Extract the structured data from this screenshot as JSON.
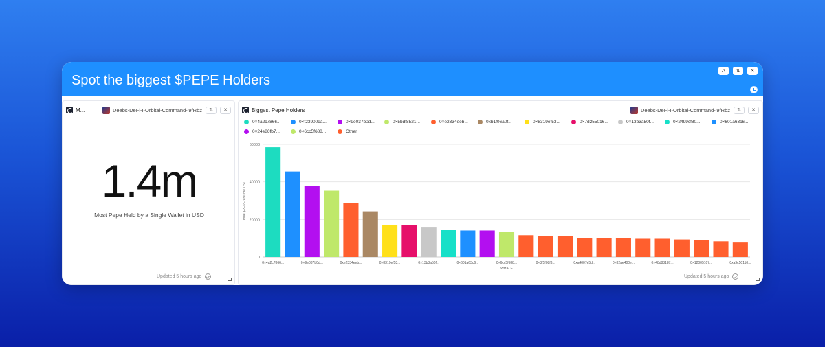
{
  "banner": {
    "title": "Spot the biggest $PEPE Holders",
    "btn_a": "A",
    "btn_refresh": "⇅",
    "btn_close": "✕"
  },
  "left_card": {
    "title": "M...",
    "source": "Deebs-DeFi-I-Orbital-Command-j9fRbz",
    "value": "1.4m",
    "caption": "Most Pepe Held by a Single Wallet in USD",
    "updated": "Updated 5 hours ago",
    "btn_refresh": "⇅",
    "btn_close": "✕"
  },
  "right_card": {
    "title": "Biggest Pepe Holders",
    "source": "Deebs-DeFi-I-Orbital-Command-j9fRbz",
    "updated": "Updated 5 hours ago",
    "btn_refresh": "⇅",
    "btn_close": "✕"
  },
  "legend": [
    {
      "label": "0×4a2c7866...",
      "color": "#1ddcc0"
    },
    {
      "label": "0×f239009a...",
      "color": "#1e90ff"
    },
    {
      "label": "0×9e037b0d...",
      "color": "#b30ff0"
    },
    {
      "label": "0×5bdf8521...",
      "color": "#bfe86a"
    },
    {
      "label": "0×e2334eeb...",
      "color": "#ff5f2e"
    },
    {
      "label": "0xb1f06a0f...",
      "color": "#aa8864"
    },
    {
      "label": "0×8319ef53...",
      "color": "#ffe01a"
    },
    {
      "label": "0×7d255016...",
      "color": "#e60f6a"
    },
    {
      "label": "0×13b3a50f...",
      "color": "#c8c8c8"
    },
    {
      "label": "0×2499cf80...",
      "color": "#17e0c8"
    },
    {
      "label": "0×601a63c6...",
      "color": "#1e90ff"
    },
    {
      "label": "0×24e86fb7...",
      "color": "#b30ff0"
    },
    {
      "label": "0×6cc5f688...",
      "color": "#bfe86a"
    },
    {
      "label": "Other",
      "color": "#ff5f2e"
    }
  ],
  "chart_data": {
    "type": "bar",
    "xlabel": "WHALE",
    "ylabel": "Total $PEPE Volume USD",
    "ylim": [
      0,
      60000
    ],
    "yticks": [
      "0",
      "20000",
      "40000",
      "60000"
    ],
    "categories": [
      "0×4a2c7866...",
      "",
      "0×9e037b0d...",
      "",
      "0xe2334eeb...",
      "",
      "0×8319ef53...",
      "",
      "0×13b3a50f...",
      "",
      "0×601a63c6...",
      "",
      "0×6cc5f688...",
      "",
      "0×3f5f08f3...",
      "",
      "0xa4007e5d...",
      "",
      "0×82ae400e...",
      "",
      "0×48d83187...",
      "",
      "0×12005107...",
      "",
      "0xa9c50110..."
    ],
    "values": [
      58500,
      45500,
      38000,
      35300,
      28700,
      24300,
      17200,
      16900,
      15700,
      14600,
      14100,
      14100,
      13400,
      11600,
      11100,
      11000,
      10200,
      10000,
      10000,
      9700,
      9700,
      9300,
      9000,
      8300,
      8000
    ],
    "colors": [
      "#1ddcc0",
      "#1e90ff",
      "#b30ff0",
      "#bfe86a",
      "#ff5f2e",
      "#aa8864",
      "#ffe01a",
      "#e60f6a",
      "#c8c8c8",
      "#17e0c8",
      "#1e90ff",
      "#b30ff0",
      "#bfe86a",
      "#ff5f2e",
      "#ff5f2e",
      "#ff5f2e",
      "#ff5f2e",
      "#ff5f2e",
      "#ff5f2e",
      "#ff5f2e",
      "#ff5f2e",
      "#ff5f2e",
      "#ff5f2e",
      "#ff5f2e",
      "#ff5f2e"
    ],
    "grid": true
  }
}
